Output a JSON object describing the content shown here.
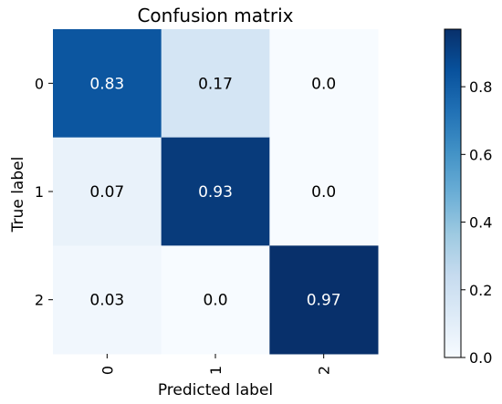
{
  "chart_data": {
    "type": "heatmap",
    "title": "Confusion matrix",
    "xlabel": "Predicted label",
    "ylabel": "True label",
    "x_categories": [
      "0",
      "1",
      "2"
    ],
    "y_categories": [
      "0",
      "1",
      "2"
    ],
    "values": [
      [
        0.83,
        0.17,
        0.0
      ],
      [
        0.07,
        0.93,
        0.0
      ],
      [
        0.03,
        0.0,
        0.97
      ]
    ],
    "cell_labels": [
      [
        "0.83",
        "0.17",
        "0.0"
      ],
      [
        "0.07",
        "0.93",
        "0.0"
      ],
      [
        "0.03",
        "0.0",
        "0.97"
      ]
    ],
    "colormap": "Blues",
    "color_range": [
      0,
      0.97
    ],
    "colorbar": {
      "ticks": [
        0.0,
        0.2,
        0.4,
        0.6,
        0.8
      ],
      "tick_labels": [
        "0.0",
        "0.2",
        "0.4",
        "0.6",
        "0.8"
      ]
    },
    "x_tick_rotation": "vertical"
  }
}
